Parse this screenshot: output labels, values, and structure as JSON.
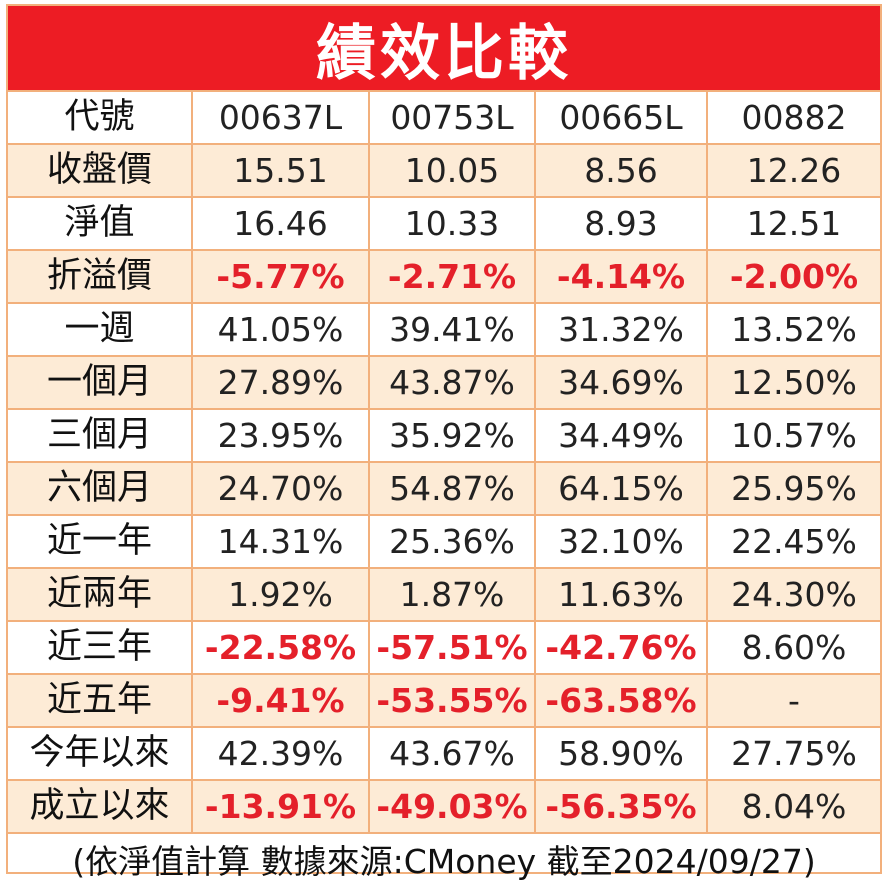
{
  "title": "績效比較",
  "colors": {
    "header_bg": "#ed1c24",
    "negative": "#e4202a",
    "shade": "#fdebd6",
    "border": "#f2b07c"
  },
  "table": {
    "rows": [
      {
        "label": "代號",
        "cells": [
          {
            "v": "00637L"
          },
          {
            "v": "00753L"
          },
          {
            "v": "00665L"
          },
          {
            "v": "00882"
          }
        ]
      },
      {
        "label": "收盤價",
        "cells": [
          {
            "v": "15.51"
          },
          {
            "v": "10.05"
          },
          {
            "v": "8.56"
          },
          {
            "v": "12.26"
          }
        ]
      },
      {
        "label": "淨值",
        "cells": [
          {
            "v": "16.46"
          },
          {
            "v": "10.33"
          },
          {
            "v": "8.93"
          },
          {
            "v": "12.51"
          }
        ]
      },
      {
        "label": "折溢價",
        "cells": [
          {
            "v": "-5.77%",
            "neg": true
          },
          {
            "v": "-2.71%",
            "neg": true
          },
          {
            "v": "-4.14%",
            "neg": true
          },
          {
            "v": "-2.00%",
            "neg": true
          }
        ]
      },
      {
        "label": "一週",
        "cells": [
          {
            "v": "41.05%"
          },
          {
            "v": "39.41%"
          },
          {
            "v": "31.32%"
          },
          {
            "v": "13.52%"
          }
        ]
      },
      {
        "label": "一個月",
        "cells": [
          {
            "v": "27.89%"
          },
          {
            "v": "43.87%"
          },
          {
            "v": "34.69%"
          },
          {
            "v": "12.50%"
          }
        ]
      },
      {
        "label": "三個月",
        "cells": [
          {
            "v": "23.95%"
          },
          {
            "v": "35.92%"
          },
          {
            "v": "34.49%"
          },
          {
            "v": "10.57%"
          }
        ]
      },
      {
        "label": "六個月",
        "cells": [
          {
            "v": "24.70%"
          },
          {
            "v": "54.87%"
          },
          {
            "v": "64.15%"
          },
          {
            "v": "25.95%"
          }
        ]
      },
      {
        "label": "近一年",
        "cells": [
          {
            "v": "14.31%"
          },
          {
            "v": "25.36%"
          },
          {
            "v": "32.10%"
          },
          {
            "v": "22.45%"
          }
        ]
      },
      {
        "label": "近兩年",
        "cells": [
          {
            "v": "1.92%"
          },
          {
            "v": "1.87%"
          },
          {
            "v": "11.63%"
          },
          {
            "v": "24.30%"
          }
        ]
      },
      {
        "label": "近三年",
        "cells": [
          {
            "v": "-22.58%",
            "neg": true
          },
          {
            "v": "-57.51%",
            "neg": true
          },
          {
            "v": "-42.76%",
            "neg": true
          },
          {
            "v": "8.60%"
          }
        ]
      },
      {
        "label": "近五年",
        "cells": [
          {
            "v": "-9.41%",
            "neg": true
          },
          {
            "v": "-53.55%",
            "neg": true
          },
          {
            "v": "-63.58%",
            "neg": true
          },
          {
            "v": "-"
          }
        ]
      },
      {
        "label": "今年以來",
        "cells": [
          {
            "v": "42.39%"
          },
          {
            "v": "43.67%"
          },
          {
            "v": "58.90%"
          },
          {
            "v": "27.75%"
          }
        ]
      },
      {
        "label": "成立以來",
        "cells": [
          {
            "v": "-13.91%",
            "neg": true
          },
          {
            "v": "-49.03%",
            "neg": true
          },
          {
            "v": "-56.35%",
            "neg": true
          },
          {
            "v": "8.04%"
          }
        ]
      }
    ]
  },
  "footer": "(依淨值計算 數據來源:CMoney 截至2024/09/27)"
}
